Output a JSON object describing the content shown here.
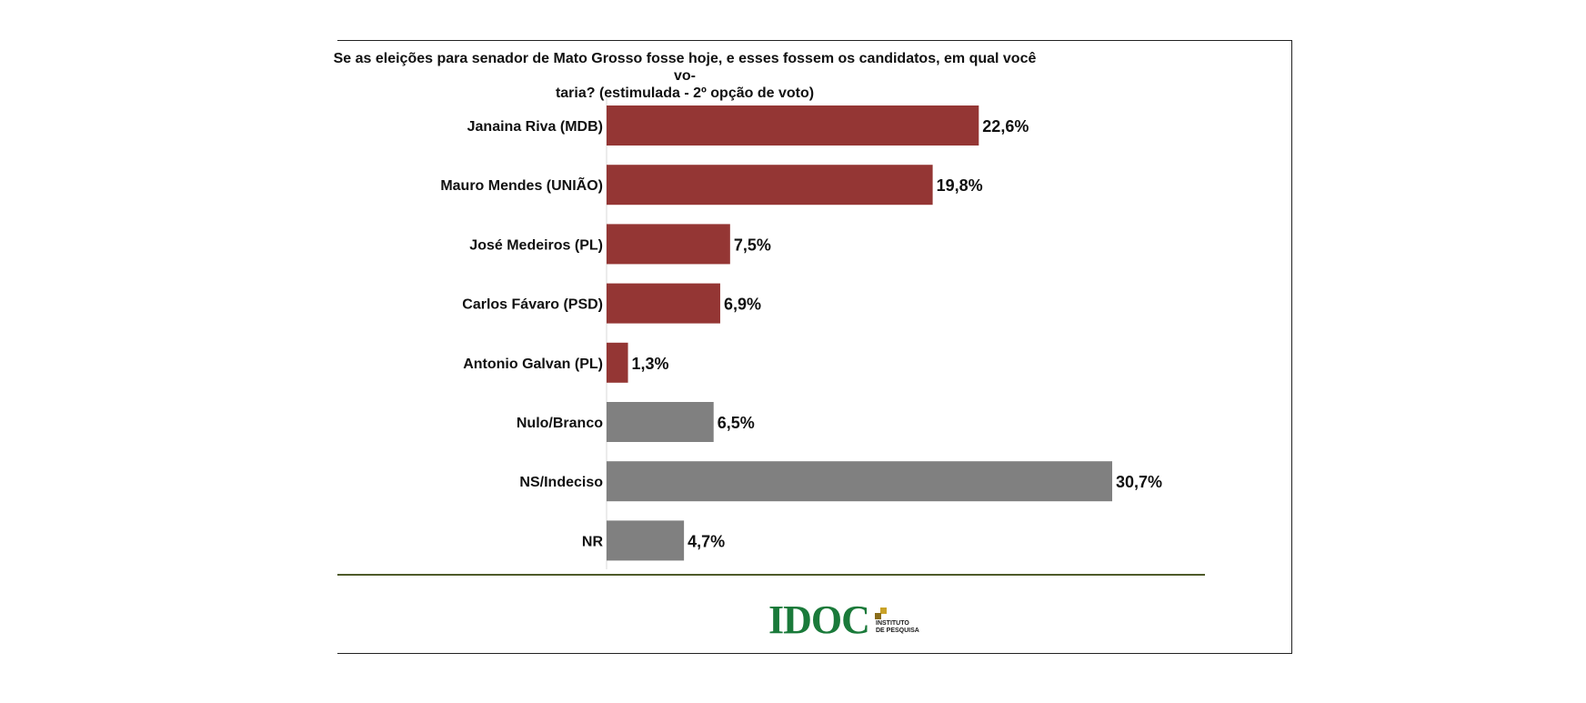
{
  "chart_data": {
    "type": "bar",
    "orientation": "horizontal",
    "title_lines": [
      "Se as eleições para senador de Mato Grosso fosse hoje, e esses fossem os candidatos, em qual você vo-",
      "taria? (estimulada - 2º opção de voto)"
    ],
    "categories": [
      "Janaina Riva (MDB)",
      "Mauro Mendes (UNIÃO)",
      "José Medeiros (PL)",
      "Carlos Fávaro (PSD)",
      "Antonio Galvan (PL)",
      "Nulo/Branco",
      "NS/Indeciso",
      "NR"
    ],
    "values": [
      22.6,
      19.8,
      7.5,
      6.9,
      1.3,
      6.5,
      30.7,
      4.7
    ],
    "value_labels": [
      "22,6%",
      "19,8%",
      "7,5%",
      "6,9%",
      "1,3%",
      "6,5%",
      "30,7%",
      "4,7%"
    ],
    "colors": [
      "#943634",
      "#943634",
      "#943634",
      "#943634",
      "#943634",
      "#808080",
      "#808080",
      "#808080"
    ],
    "xlim": [
      0,
      30.7
    ],
    "grid": false,
    "legend": "none"
  },
  "logo": {
    "name": "IDOC",
    "subtitle_line1": "INSTITUTO",
    "subtitle_line2": "DE PESQUISA"
  }
}
